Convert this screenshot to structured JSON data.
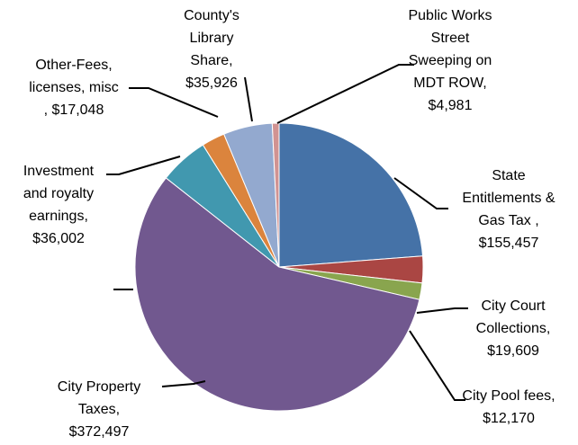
{
  "chart_data": {
    "type": "pie",
    "categories": [
      "State Entitlements & Gas Tax ,",
      "City Court Collections,",
      "City Pool fees,",
      "City Property Taxes,",
      "Investment and royalty earnings,",
      "Other-Fees, licenses, misc",
      "County's Library Share,",
      "Public Works Street Sweeping on MDT ROW,"
    ],
    "values": [
      155457,
      19609,
      12170,
      372497,
      36002,
      17048,
      35926,
      4981
    ],
    "value_labels": [
      "$155,457",
      "$19,609",
      "$12,170",
      "$372,497",
      "$36,002",
      ", $17,048",
      "$35,926",
      "$4,981"
    ],
    "colors": [
      "#4572a7",
      "#aa4643",
      "#89a54e",
      "#71588f",
      "#4198af",
      "#db843d",
      "#93a9cf",
      "#d19392"
    ]
  }
}
